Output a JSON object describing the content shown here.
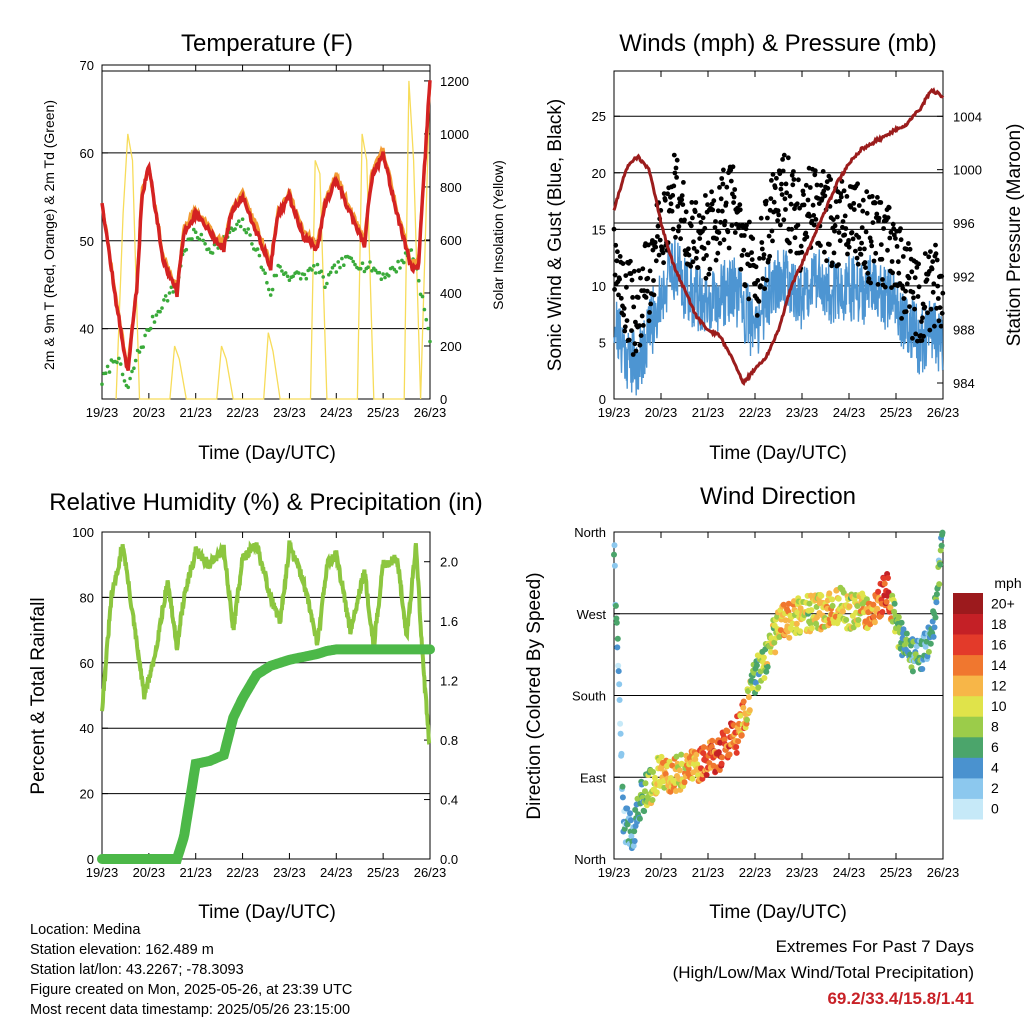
{
  "panels": {
    "temperature": {
      "title": "Temperature (F)",
      "ylabel_left": "2m & 9m T (Red, Orange) & 2m Td (Green)",
      "ylabel_right": "Solar Insolation (Yellow)",
      "xlabel": "Time (Day/UTC)",
      "y_ticks": [
        "40",
        "50",
        "60",
        "70"
      ],
      "y2_ticks": [
        "0",
        "200",
        "400",
        "600",
        "800",
        "1000",
        "1200"
      ]
    },
    "winds": {
      "title": "Winds (mph) & Pressure (mb)",
      "ylabel_left": "Sonic Wind & Gust (Blue, Black)",
      "ylabel_right": "Station Pressure (Maroon)",
      "xlabel": "Time (Day/UTC)",
      "y_ticks": [
        "0",
        "5",
        "10",
        "15",
        "20",
        "25"
      ],
      "y2_ticks": [
        "984",
        "988",
        "992",
        "996",
        "1000",
        "1004"
      ]
    },
    "humidity": {
      "title": "Relative Humidity (%) & Precipitation (in)",
      "ylabel_left": "Percent & Total Rainfall",
      "xlabel": "Time (Day/UTC)",
      "y_ticks": [
        "0",
        "20",
        "40",
        "60",
        "80",
        "100"
      ],
      "y2_ticks": [
        "0.0",
        "0.4",
        "0.8",
        "1.2",
        "1.6",
        "2.0"
      ]
    },
    "direction": {
      "title": "Wind Direction",
      "ylabel_left": "Direction (Colored By Speed)",
      "xlabel": "Time (Day/UTC)",
      "y_ticks": [
        "North",
        "East",
        "South",
        "West",
        "North"
      ],
      "colorbar_title": "mph",
      "colorbar_labels": [
        "0",
        "2",
        "4",
        "6",
        "8",
        "10",
        "12",
        "14",
        "16",
        "18",
        "20+"
      ]
    }
  },
  "x_ticks": [
    "19/23",
    "20/23",
    "21/23",
    "22/23",
    "23/23",
    "24/23",
    "25/23",
    "26/23"
  ],
  "station_info": [
    "Location: Medina",
    "Station elevation: 162.489 m",
    "Station lat/lon: 43.2267; -78.3093",
    "Figure created on Mon, 2025-05-26, at 23:39 UTC",
    "Most recent data timestamp: 2025/05/26 23:15:00"
  ],
  "extremes": {
    "line1": "Extremes For Past 7 Days",
    "line2": "(High/Low/Max Wind/Total Precipitation)",
    "values": "69.2/33.4/15.8/1.41"
  },
  "colors": {
    "temp_2m": "#d42222",
    "temp_9m": "#f39c34",
    "dewpoint": "#3aaa3a",
    "solar": "#f7dc5a",
    "wind": "#4d95d2",
    "gust": "#000000",
    "pressure": "#9b1c1c",
    "rh": "#8cc63f",
    "precip": "#4cb848",
    "speed_scale": [
      "#c6e9f8",
      "#8cc8ee",
      "#4a92cf",
      "#4ba56b",
      "#9bcc4a",
      "#e0e34a",
      "#f7b648",
      "#f0772f",
      "#e33a2a",
      "#c42026",
      "#9c1a1d"
    ]
  },
  "chart_data": [
    {
      "type": "line",
      "title": "Temperature (F)",
      "xlabel": "Time (Day/UTC)",
      "ylabel": "2m & 9m T (Red, Orange) & 2m Td (Green)",
      "y2label": "Solar Insolation (Yellow)",
      "x": [
        19.0,
        19.3,
        19.55,
        19.75,
        19.85,
        20.0,
        20.3,
        20.6,
        20.75,
        21.0,
        21.3,
        21.6,
        21.75,
        22.0,
        22.3,
        22.6,
        22.75,
        23.0,
        23.3,
        23.6,
        23.75,
        24.0,
        24.3,
        24.6,
        24.75,
        25.0,
        25.3,
        25.6,
        25.75,
        26.0
      ],
      "ylim": [
        32,
        70
      ],
      "y2lim": [
        0,
        1260
      ],
      "series": [
        {
          "name": "2m T",
          "values": [
            54.5,
            43,
            35,
            45,
            55,
            58.5,
            48,
            44,
            51,
            53,
            51,
            49,
            53,
            55,
            51,
            47,
            53,
            55,
            50.5,
            49,
            54,
            57,
            53,
            49.5,
            57,
            60,
            53,
            47,
            47,
            68.5
          ]
        },
        {
          "name": "9m T",
          "values": [
            54.5,
            43.5,
            35.5,
            45.5,
            55.5,
            58.5,
            48.5,
            44.5,
            51.5,
            53.5,
            51.5,
            49.5,
            53.5,
            55.5,
            51.5,
            47.5,
            53.5,
            55.5,
            51,
            49.5,
            54.5,
            57.5,
            53.5,
            50,
            57.5,
            60.5,
            53.5,
            47.5,
            47.5,
            68
          ]
        },
        {
          "name": "2m Td",
          "values": [
            34,
            37,
            33,
            37,
            38,
            40,
            43,
            45,
            49,
            51,
            49,
            50,
            51,
            52,
            49,
            44,
            47,
            46,
            46,
            47,
            45,
            47,
            48,
            47,
            47,
            46,
            47,
            49,
            46,
            38.5
          ]
        },
        {
          "name": "Solar Insolation",
          "axis": "y2",
          "x": [
            19.3,
            19.45,
            19.55,
            19.65,
            19.8,
            20.45,
            20.55,
            20.65,
            20.8,
            21.45,
            21.55,
            21.65,
            21.8,
            22.45,
            22.55,
            22.65,
            22.8,
            23.45,
            23.55,
            23.65,
            23.8,
            24.45,
            24.55,
            24.65,
            24.8,
            25.45,
            25.55,
            25.65,
            25.8,
            26.0
          ],
          "values": [
            0,
            700,
            1000,
            900,
            0,
            0,
            200,
            150,
            0,
            0,
            200,
            150,
            0,
            0,
            250,
            180,
            0,
            0,
            900,
            850,
            0,
            0,
            1000,
            900,
            0,
            0,
            1200,
            900,
            0,
            1200
          ]
        }
      ]
    },
    {
      "type": "line",
      "title": "Winds (mph) & Pressure (mb)",
      "xlabel": "Time (Day/UTC)",
      "ylabel": "Sonic Wind & Gust (Blue, Black)",
      "y2label": "Station Pressure (Maroon)",
      "x": [
        19.0,
        19.25,
        19.5,
        19.75,
        20.0,
        20.25,
        20.5,
        20.75,
        21.0,
        21.25,
        21.5,
        21.75,
        22.0,
        22.25,
        22.5,
        22.75,
        23.0,
        23.25,
        23.5,
        23.75,
        24.0,
        24.25,
        24.5,
        24.75,
        25.0,
        25.25,
        25.5,
        25.75,
        26.0
      ],
      "ylim": [
        0,
        29
      ],
      "y2lim": [
        982.8,
        1007.4
      ],
      "series": [
        {
          "name": "Sonic Wind",
          "values": [
            7,
            4,
            3,
            6,
            9,
            12,
            10,
            9,
            8,
            9,
            10,
            8,
            6,
            9,
            11,
            10,
            9,
            11,
            10,
            9,
            10,
            9,
            10,
            9,
            8,
            7,
            5,
            6,
            5
          ]
        },
        {
          "name": "Gust",
          "values": [
            13,
            9,
            7,
            11,
            15,
            18,
            16,
            15,
            14,
            16,
            17,
            14,
            10,
            14,
            19,
            17,
            15,
            18,
            16,
            15,
            17,
            15,
            14,
            14,
            12,
            10,
            8,
            10,
            9
          ]
        },
        {
          "name": "Station Pressure",
          "axis": "y2",
          "values": [
            997,
            1000,
            1001,
            1000,
            996,
            993,
            991,
            989,
            988,
            987.5,
            986,
            984,
            985,
            986,
            988,
            991,
            993,
            995,
            997,
            999,
            1000.5,
            1001.5,
            1002,
            1002.5,
            1003,
            1003.5,
            1004.5,
            1006,
            1005.5
          ]
        }
      ]
    },
    {
      "type": "line",
      "title": "Relative Humidity (%) & Precipitation (in)",
      "xlabel": "Time (Day/UTC)",
      "ylabel": "Percent & Total Rainfall",
      "x": [
        19.0,
        19.2,
        19.45,
        19.7,
        19.9,
        20.1,
        20.4,
        20.6,
        20.75,
        21.0,
        21.3,
        21.6,
        21.8,
        22.0,
        22.3,
        22.6,
        22.8,
        23.0,
        23.3,
        23.6,
        23.8,
        24.0,
        24.3,
        24.6,
        24.8,
        25.0,
        25.3,
        25.5,
        25.7,
        25.85,
        26.0
      ],
      "ylim": [
        0,
        100
      ],
      "y2lim": [
        0,
        2.2
      ],
      "series": [
        {
          "name": "Relative Humidity",
          "values": [
            46,
            80,
            96,
            70,
            50,
            60,
            85,
            65,
            80,
            94,
            90,
            95,
            70,
            92,
            96,
            80,
            72,
            96,
            85,
            66,
            90,
            93,
            70,
            88,
            65,
            90,
            92,
            68,
            96,
            60,
            33
          ]
        },
        {
          "name": "Total Precipitation",
          "axis": "y2",
          "values": [
            0,
            0,
            0,
            0,
            0,
            0,
            0,
            0,
            0.15,
            0.64,
            0.66,
            0.7,
            0.95,
            1.08,
            1.24,
            1.3,
            1.32,
            1.34,
            1.36,
            1.38,
            1.4,
            1.41,
            1.41,
            1.41,
            1.41,
            1.41,
            1.41,
            1.41,
            1.41,
            1.41,
            1.41
          ]
        }
      ]
    },
    {
      "type": "scatter",
      "title": "Wind Direction",
      "xlabel": "Time (Day/UTC)",
      "ylabel": "Direction (Colored By Speed)",
      "xlim": [
        19.0,
        26.0
      ],
      "ylim": [
        0,
        360
      ],
      "colorbar": {
        "title": "mph",
        "labels": [
          "0",
          "2",
          "4",
          "6",
          "8",
          "10",
          "12",
          "14",
          "16",
          "18",
          "20+"
        ]
      },
      "x": [
        19.0,
        19.2,
        19.4,
        19.6,
        19.8,
        20.0,
        20.2,
        20.4,
        20.6,
        20.8,
        21.0,
        21.2,
        21.4,
        21.6,
        21.8,
        22.0,
        22.2,
        22.4,
        22.6,
        22.8,
        23.0,
        23.2,
        23.4,
        23.6,
        23.8,
        24.0,
        24.2,
        24.4,
        24.6,
        24.8,
        25.0,
        25.2,
        25.4,
        25.6,
        25.8,
        26.0
      ],
      "series": [
        {
          "name": "direction",
          "values": [
            345,
            40,
            30,
            70,
            80,
            100,
            90,
            95,
            100,
            105,
            110,
            115,
            125,
            135,
            160,
            200,
            215,
            245,
            260,
            265,
            270,
            270,
            272,
            275,
            280,
            270,
            275,
            270,
            275,
            300,
            260,
            230,
            225,
            230,
            260,
            355
          ]
        },
        {
          "name": "speed",
          "values": [
            4,
            3,
            4,
            6,
            9,
            11,
            12,
            10,
            12,
            13,
            15,
            16,
            15,
            14,
            12,
            7,
            8,
            9,
            12,
            12,
            10,
            9,
            11,
            12,
            11,
            9,
            10,
            12,
            14,
            16,
            8,
            6,
            5,
            4,
            5,
            6
          ]
        }
      ]
    }
  ]
}
